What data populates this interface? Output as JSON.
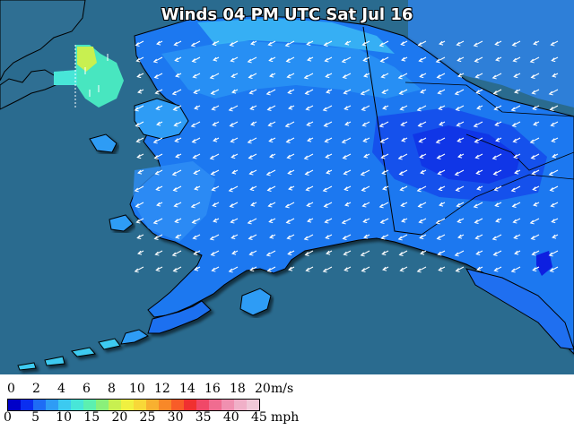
{
  "title": "Winds 04 PM UTC Sat Jul 16",
  "colors": {
    "ocean": "#2a6b8f",
    "land_base": "#2a6b8f",
    "speed_0": "#0a1fe0",
    "speed_2": "#1f5bf0",
    "speed_4": "#2e8cf5",
    "speed_6": "#3ac2f0",
    "speed_8": "#42e0c8",
    "speed_10": "#8ae86a",
    "arrow": "#ffffff"
  },
  "legend": {
    "ms_ticks": [
      "0",
      "2",
      "4",
      "6",
      "8",
      "10",
      "12",
      "14",
      "16",
      "18",
      "20"
    ],
    "ms_unit": "m/s",
    "mph_ticks": [
      "0",
      "5",
      "10",
      "15",
      "20",
      "25",
      "30",
      "35",
      "40",
      "45"
    ],
    "mph_unit": "mph",
    "colors": [
      "#0000c8",
      "#0a2ef0",
      "#1e6cf5",
      "#2e9cf5",
      "#3ccaf0",
      "#48e6d8",
      "#5cf0b0",
      "#8af07a",
      "#c8f050",
      "#f0f040",
      "#f8d838",
      "#f8b030",
      "#f88828",
      "#f85c28",
      "#f03030",
      "#f04868",
      "#f06c90",
      "#f090b0",
      "#f0b0c8",
      "#f0c8d8"
    ]
  },
  "wind_arrows": "southwest-pointing wind barbs over Alaska"
}
